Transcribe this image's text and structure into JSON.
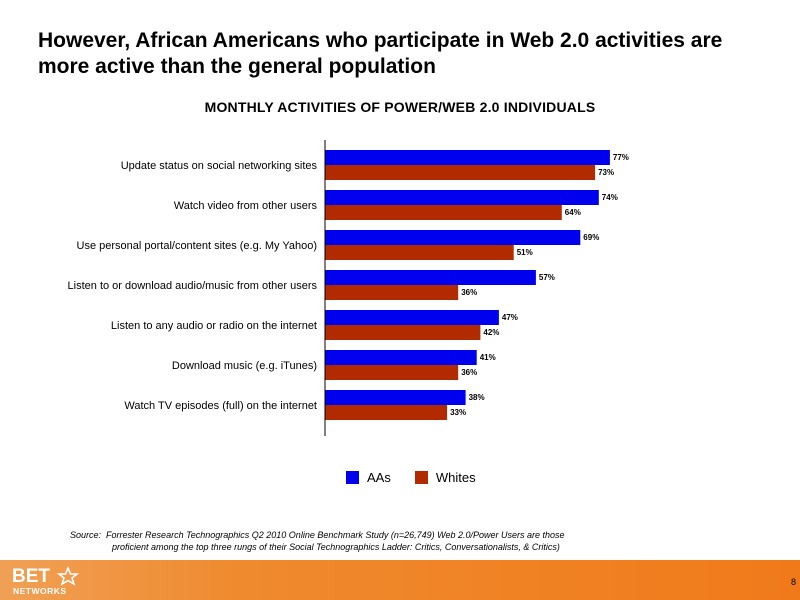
{
  "slide": {
    "headline": "However, African Americans who participate in Web 2.0 activities are more active than the general population",
    "page_number": "8",
    "source_prefix": "Source:",
    "source_line1": "Forrester Research Technographics Q2 2010 Online Benchmark Study (n=26,749) Web 2.0/Power Users are those",
    "source_line2": "proficient among the top three rungs of their Social Technographics Ladder: Critics, Conversationalists, & Critics)",
    "logo_top": "BET",
    "logo_bottom": "NETWORKS"
  },
  "chart_data": {
    "type": "bar",
    "orientation": "horizontal",
    "title": "MONTHLY ACTIVITIES OF POWER/WEB 2.0 INDIVIDUALS",
    "categories": [
      "Update status on social networking sites",
      "Watch video from other users",
      "Use personal portal/content sites (e.g. My Yahoo)",
      "Listen to or download audio/music from other users",
      "Listen to any audio or radio on the internet",
      "Download music (e.g. iTunes)",
      "Watch TV episodes (full) on the internet"
    ],
    "series": [
      {
        "name": "AAs",
        "color": "#0000ee",
        "values": [
          77,
          74,
          69,
          57,
          47,
          41,
          38
        ]
      },
      {
        "name": "Whites",
        "color": "#b22a00",
        "values": [
          73,
          64,
          51,
          36,
          42,
          36,
          33
        ]
      }
    ],
    "value_suffix": "%",
    "xlim": [
      0,
      100
    ],
    "legend_position": "bottom",
    "grid": false
  }
}
